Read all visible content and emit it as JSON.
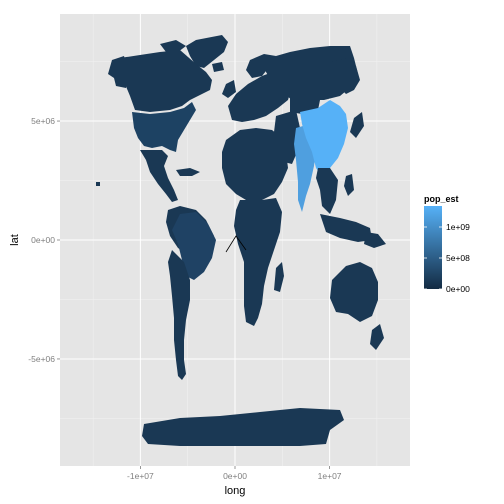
{
  "chart_data": {
    "type": "map",
    "xlabel": "long",
    "ylabel": "lat",
    "xlim": [
      -18500000,
      18500000
    ],
    "ylim": [
      -9500000,
      9500000
    ],
    "xticks": [
      {
        "value": -10000000,
        "label": "-1e+07"
      },
      {
        "value": 0,
        "label": "0e+00"
      },
      {
        "value": 10000000,
        "label": "1e+07"
      }
    ],
    "yticks": [
      {
        "value": 5000000,
        "label": "5e+06"
      },
      {
        "value": 0,
        "label": "0e+00"
      },
      {
        "value": -5000000,
        "label": "-5e+06"
      }
    ],
    "grid": true,
    "legend": {
      "position": "right",
      "title": "pop_est",
      "range": [
        0,
        1338612970
      ],
      "color_low": "#132b43",
      "color_high": "#56b1f7",
      "breaks": [
        {
          "value": 1000000000,
          "label": "1e+09"
        },
        {
          "value": 500000000,
          "label": "5e+08"
        },
        {
          "value": 0,
          "label": "0e+00"
        }
      ]
    },
    "colors": {
      "panel_bg": "#e5e5e5",
      "grid_major": "#ffffff",
      "grid_minor": "#f2f2f2",
      "land_default": "#1a3854",
      "china": "#56b1f7",
      "india": "#4f9fdf",
      "usa": "#1d4263",
      "brazil": "#1f4264"
    }
  }
}
